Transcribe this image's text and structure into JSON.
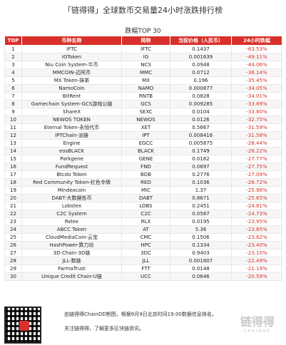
{
  "header": {
    "title": "「链得得」全球数币交易量24小时涨跌排行榜",
    "subtitle": "跌幅TOP 30"
  },
  "table": {
    "columns": [
      "TOP",
      "币种名称",
      "简称",
      "当前价格（人民币）",
      "24小时跌幅"
    ],
    "rows": [
      [
        "1",
        "IFTC",
        "IFTC",
        "0.1437",
        "-63.53%"
      ],
      [
        "2",
        "IGToken",
        "IG",
        "0.001639",
        "-49.11%"
      ],
      [
        "3",
        "Niu Coin System-牛币",
        "NCS",
        "0.0948",
        "-44.06%"
      ],
      [
        "4",
        "MMCOIN-迈阿币",
        "MMC",
        "0.0712",
        "-36.14%"
      ],
      [
        "5",
        "MX Token-抹茶",
        "MX",
        "0.196",
        "-35.45%"
      ],
      [
        "6",
        "NamoCoin",
        "NAMO",
        "0.000877",
        "-34.05%"
      ],
      [
        "7",
        "BitRent",
        "RNTB",
        "0.0828",
        "-34.01%"
      ],
      [
        "8",
        "Gamechain System-GCS游戏公链",
        "GCS",
        "0.009285",
        "-33.89%"
      ],
      [
        "9",
        "ShareX",
        "SEXC",
        "0.0104",
        "-33.80%"
      ],
      [
        "10",
        "NEWOS TOKEN",
        "NEWOS",
        "0.0126",
        "-32.75%"
      ],
      [
        "11",
        "Eternal Token-永恒代币",
        "XET",
        "0.5667",
        "-31.59%"
      ],
      [
        "12",
        "IPTChain-派链",
        "IPT",
        "0.008416",
        "-31.58%"
      ],
      [
        "13",
        "Engine",
        "EGCC",
        "0.005875",
        "-28.44%"
      ],
      [
        "14",
        "eosBLACK",
        "BLACK",
        "0.1749",
        "-28.22%"
      ],
      [
        "15",
        "Parkgene",
        "GENE",
        "0.0162",
        "-27.77%"
      ],
      [
        "16",
        "FundRequest",
        "FND",
        "0.0697",
        "-27.75%"
      ],
      [
        "17",
        "Btcdo Token",
        "BDB",
        "0.2776",
        "-27.09%"
      ],
      [
        "18",
        "Red Community Token-红色令牌",
        "RED",
        "0.1036",
        "-26.72%"
      ],
      [
        "19",
        "Mindexcoin",
        "MIC",
        "1.37",
        "-25.96%"
      ],
      [
        "20",
        "DABT-大数据哲币",
        "DABT",
        "0.8671",
        "-25.65%"
      ],
      [
        "21",
        "Lobstex",
        "LOBS",
        "0.2451",
        "-24.81%"
      ],
      [
        "22",
        "C2C System",
        "C2C",
        "0.0587",
        "-24.73%"
      ],
      [
        "23",
        "Relex",
        "RLX",
        "0.0195",
        "-23.95%"
      ],
      [
        "24",
        "ABCC Token",
        "AT",
        "5.36",
        "-23.85%"
      ],
      [
        "25",
        "CloudMediaCoin-云宝",
        "CMC",
        "0.1506",
        "-23.82%"
      ],
      [
        "26",
        "HashPower-算力坊",
        "HPC",
        "0.1334",
        "-23.40%"
      ],
      [
        "27",
        "3D-Chain-3D链",
        "3DC",
        "0.9403",
        "-23.10%"
      ],
      [
        "28",
        "JLL-数链",
        "JLL",
        "0.001807",
        "-22.49%"
      ],
      [
        "29",
        "FarmaTrust",
        "FTT",
        "0.0148",
        "-21.19%"
      ],
      [
        "30",
        "Unique Credit Chain-U链",
        "UCC",
        "0.0646",
        "-20.59%"
      ]
    ]
  },
  "footer": {
    "line1": "由链得得ChainDD制图，根据9月9日北京时间19:00数据信息排名。",
    "line2": "关注链得得，了解更多区块链资讯。",
    "brand_logo": "链得得",
    "brand_en": "CHAINDD",
    "qr_icon": "qr-code-icon"
  },
  "colors": {
    "accent": "#d9302b"
  }
}
